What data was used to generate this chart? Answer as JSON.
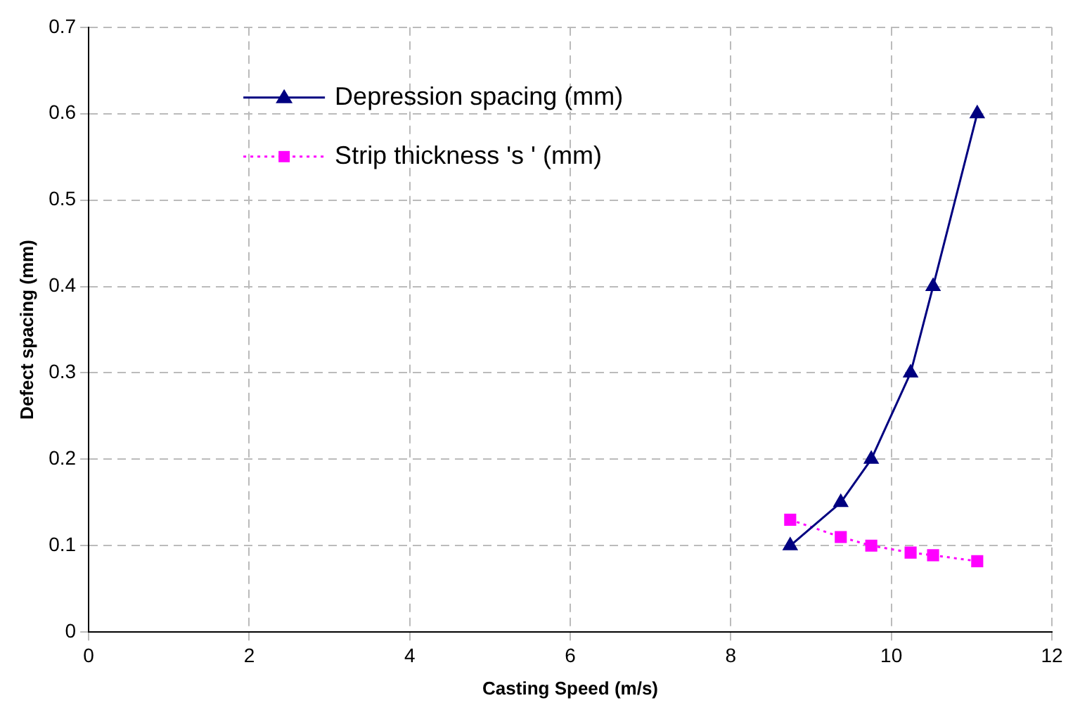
{
  "chart_data": {
    "type": "line",
    "xlabel": "Casting Speed (m/s)",
    "ylabel": "Defect spacing (mm)",
    "xlim": [
      0,
      12
    ],
    "xticks": [
      0,
      2,
      4,
      6,
      8,
      10,
      12
    ],
    "ylim": [
      0,
      0.7
    ],
    "yticks": [
      0,
      0.1,
      0.2,
      0.3,
      0.4,
      0.5,
      0.6,
      0.7
    ],
    "grid": true,
    "legend": "top left",
    "series": [
      {
        "name": "Depression spacing (mm)",
        "color": "#000080",
        "marker": "triangle",
        "line_style": "solid",
        "x": [
          8.74,
          9.37,
          9.75,
          10.24,
          10.52,
          11.07
        ],
        "values": [
          0.1,
          0.15,
          0.2,
          0.3,
          0.4,
          0.6
        ]
      },
      {
        "name": "Strip thickness 's ' (mm)",
        "color": "#ff00ff",
        "marker": "square",
        "line_style": "dotted",
        "x": [
          8.74,
          9.37,
          9.75,
          10.24,
          10.52,
          11.07
        ],
        "values": [
          0.13,
          0.11,
          0.1,
          0.092,
          0.089,
          0.082
        ]
      }
    ]
  }
}
